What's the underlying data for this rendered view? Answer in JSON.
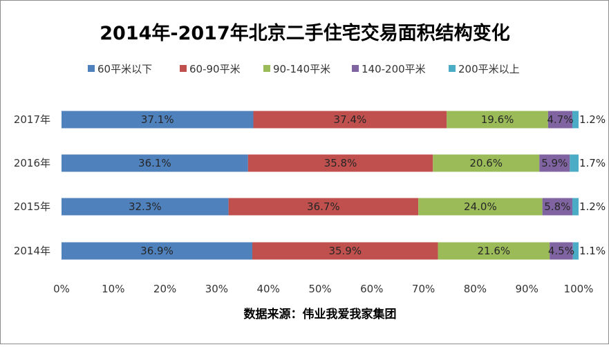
{
  "chart_data": {
    "type": "bar",
    "orientation": "horizontal",
    "stacked": "percent",
    "title": "2014年-2017年北京二手住宅交易面积结构变化",
    "categories": [
      "2017年",
      "2016年",
      "2015年",
      "2014年"
    ],
    "series": [
      {
        "name": "60平米以下",
        "color": "#4f81bd",
        "values": [
          37.1,
          36.1,
          32.3,
          36.9
        ],
        "labels": [
          "37.1%",
          "36.1%",
          "32.3%",
          "36.9%"
        ]
      },
      {
        "name": "60-90平米",
        "color": "#c0504d",
        "values": [
          37.4,
          35.8,
          36.7,
          35.9
        ],
        "labels": [
          "37.4%",
          "35.8%",
          "36.7%",
          "35.9%"
        ]
      },
      {
        "name": "90-140平米",
        "color": "#9bbb59",
        "values": [
          19.6,
          20.6,
          24.0,
          21.6
        ],
        "labels": [
          "19.6%",
          "20.6%",
          "24.0%",
          "21.6%"
        ]
      },
      {
        "name": "140-200平米",
        "color": "#8064a2",
        "values": [
          4.7,
          5.9,
          5.8,
          4.5
        ],
        "labels": [
          "4.7%",
          "5.9%",
          "5.8%",
          "4.5%"
        ]
      },
      {
        "name": "200平米以上",
        "color": "#4bacc6",
        "values": [
          1.2,
          1.7,
          1.2,
          1.1
        ],
        "labels": [
          "1.2%",
          "1.7%",
          "1.2%",
          "1.1%"
        ]
      }
    ],
    "x_ticks": [
      "0%",
      "10%",
      "20%",
      "30%",
      "40%",
      "50%",
      "60%",
      "70%",
      "80%",
      "90%",
      "100%"
    ],
    "xlim": [
      0,
      100
    ],
    "grid": false,
    "legend": "top",
    "source": "数据来源：伟业我爱我家集团"
  }
}
